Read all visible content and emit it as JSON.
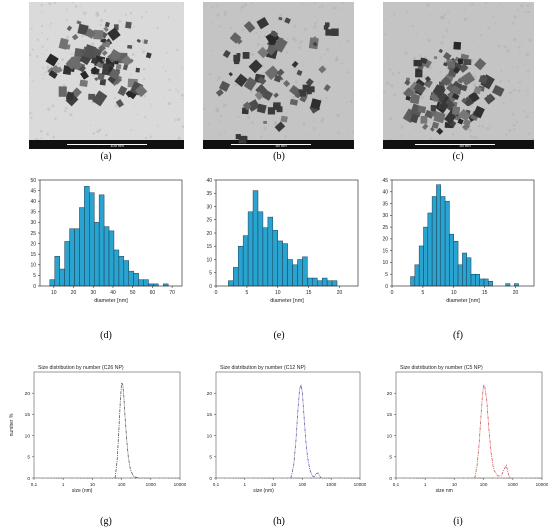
{
  "figure": {
    "captions": [
      "(a)",
      "(b)",
      "(c)",
      "(d)",
      "(e)",
      "(f)",
      "(g)",
      "(h)",
      "(i)"
    ]
  },
  "tem": [
    {
      "id": "a",
      "scale_label": "100 nm",
      "tone": "#9a9a9a"
    },
    {
      "id": "b",
      "scale_label": "50 nm",
      "tone": "#8f8f8f"
    },
    {
      "id": "c",
      "scale_label": "50 nm",
      "tone": "#8c8c8c"
    }
  ],
  "chart_data": [
    {
      "type": "bar",
      "panel": "d",
      "xlabel": "diameter [nm]",
      "ylabel": "",
      "bin_start": 8,
      "bin_width": 2.5,
      "values": [
        3,
        14,
        8,
        21,
        27,
        27,
        37,
        47,
        44,
        30,
        43,
        28,
        26,
        17,
        14,
        12,
        7,
        6,
        3,
        3,
        1,
        1,
        0,
        1
      ],
      "xlim": [
        3,
        75
      ],
      "ylim": [
        0,
        50
      ],
      "xticks": [
        10,
        20,
        30,
        40,
        50,
        60,
        70
      ],
      "yticks": [
        0,
        5,
        10,
        15,
        20,
        25,
        30,
        35,
        40,
        45,
        50
      ],
      "color": "#29a3cf"
    },
    {
      "type": "bar",
      "panel": "e",
      "xlabel": "diameter [nm]",
      "ylabel": "",
      "bin_start": 2,
      "bin_width": 0.8,
      "values": [
        2,
        7,
        15,
        19,
        28,
        36,
        28,
        22,
        26,
        21,
        17,
        16,
        10,
        8,
        10,
        11,
        3,
        3,
        2,
        3,
        2,
        2
      ],
      "xlim": [
        0,
        23
      ],
      "ylim": [
        0,
        40
      ],
      "xticks": [
        0,
        5,
        10,
        15,
        20
      ],
      "yticks": [
        0,
        5,
        10,
        15,
        20,
        25,
        30,
        35,
        40
      ],
      "color": "#29a3cf"
    },
    {
      "type": "bar",
      "panel": "f",
      "xlabel": "diameter [nm]",
      "ylabel": "",
      "bin_start": 3,
      "bin_width": 0.7,
      "values": [
        4,
        9,
        17,
        25,
        31,
        38,
        43,
        38,
        36,
        22,
        19,
        9,
        14,
        12,
        5,
        5,
        3,
        3,
        2,
        0,
        0,
        0,
        1,
        0,
        1
      ],
      "xlim": [
        0,
        23
      ],
      "ylim": [
        0,
        45
      ],
      "xticks": [
        0,
        5,
        10,
        15,
        20
      ],
      "yticks": [
        0,
        5,
        10,
        15,
        20,
        25,
        30,
        35,
        40,
        45
      ],
      "color": "#29a3cf"
    },
    {
      "type": "line",
      "panel": "g",
      "title": "Size distribution by number (C26 NP)",
      "xlabel": "size (nm)",
      "ylabel": "number %",
      "xscale": "log",
      "xlim": [
        0.1,
        10000
      ],
      "ylim": [
        0,
        25
      ],
      "xticks": [
        "0,1",
        "1",
        "10",
        "100",
        "1000",
        "10000"
      ],
      "yticks": [
        0,
        5,
        10,
        15,
        20
      ],
      "series": [
        {
          "color": "#555555",
          "x": [
            60,
            70,
            80,
            90,
            100,
            110,
            120,
            130,
            150,
            170,
            200,
            250,
            300,
            400
          ],
          "y": [
            0,
            4,
            11,
            18,
            22.5,
            22,
            19,
            15,
            9,
            5,
            2,
            0.5,
            0.2,
            0
          ]
        }
      ]
    },
    {
      "type": "line",
      "panel": "h",
      "title": "Size distribution by number (C12 NP)",
      "xlabel": "size (nm)",
      "ylabel": "",
      "xscale": "log",
      "xlim": [
        0.1,
        10000
      ],
      "ylim": [
        0,
        25
      ],
      "xticks": [
        "0,1",
        "1",
        "10",
        "100",
        "1000",
        "10000"
      ],
      "yticks": [
        0,
        5,
        10,
        15,
        20
      ],
      "series": [
        {
          "color": "#5b5bb0",
          "x": [
            40,
            50,
            60,
            70,
            80,
            90,
            100,
            110,
            130,
            150,
            180,
            220,
            260,
            300,
            350,
            400,
            450
          ],
          "y": [
            0,
            3,
            9,
            16,
            21,
            22,
            20,
            16,
            9,
            5,
            2,
            0.5,
            0.3,
            1,
            1.2,
            0.4,
            0
          ]
        }
      ]
    },
    {
      "type": "line",
      "panel": "i",
      "title": "Size distribution by number (C5 NP)",
      "xlabel": "size nm",
      "ylabel": "",
      "xscale": "log",
      "xlim": [
        0.1,
        10000
      ],
      "ylim": [
        0,
        25
      ],
      "xticks": [
        "0,1",
        "1",
        "10",
        "100",
        "1000",
        "10000"
      ],
      "yticks": [
        0,
        5,
        10,
        15,
        20
      ],
      "series": [
        {
          "color": "#d9534f",
          "x": [
            50,
            60,
            70,
            80,
            90,
            100,
            110,
            130,
            150,
            180,
            220,
            300,
            400,
            500,
            600,
            700,
            800
          ],
          "y": [
            0,
            3,
            8,
            14,
            19,
            22,
            21.5,
            18,
            12,
            6,
            2,
            0.5,
            0.5,
            2,
            3,
            1,
            0
          ]
        }
      ]
    }
  ]
}
